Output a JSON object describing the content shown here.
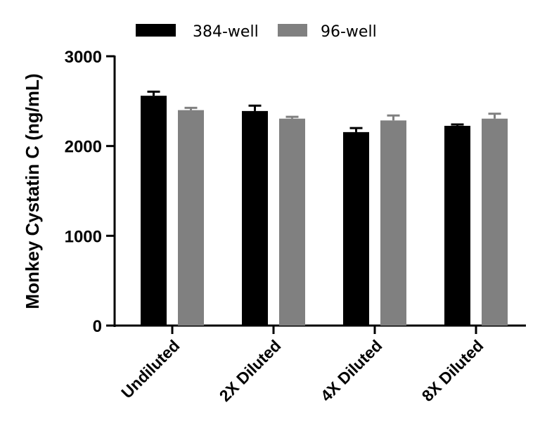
{
  "chart_data": {
    "type": "bar",
    "ylabel": "Monkey Cystatin C (ng/mL)",
    "xlabel": "",
    "ylim": [
      0,
      3000
    ],
    "yticks": [
      0,
      1000,
      2000,
      3000
    ],
    "categories": [
      "Undiluted",
      "2X Diluted",
      "4X Diluted",
      "8X Diluted"
    ],
    "legend_position": "top",
    "grid": false,
    "series": [
      {
        "name": "384-well",
        "color": "#000000",
        "values": [
          2560,
          2390,
          2155,
          2225
        ],
        "errors": [
          45,
          60,
          45,
          15
        ]
      },
      {
        "name": "96-well",
        "color": "#808080",
        "values": [
          2400,
          2305,
          2285,
          2305
        ],
        "errors": [
          25,
          20,
          55,
          55
        ]
      }
    ]
  }
}
